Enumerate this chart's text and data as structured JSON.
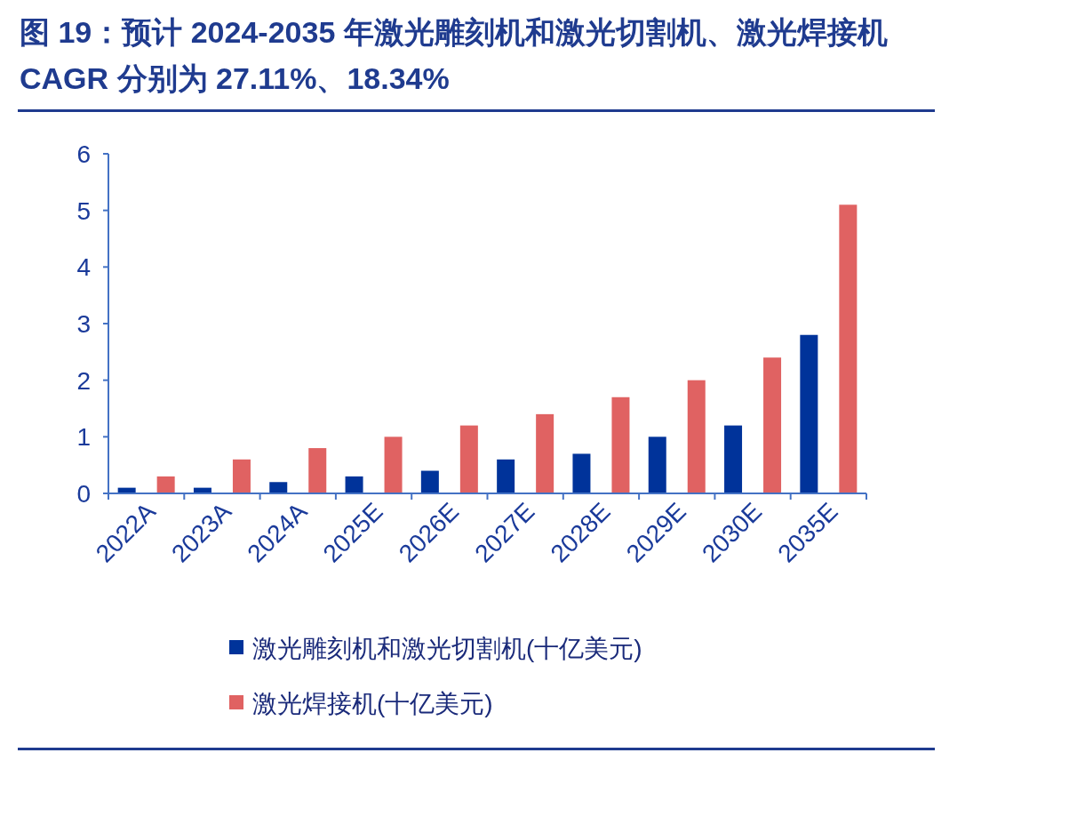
{
  "chart_data": {
    "type": "bar",
    "title": "图 19：预计 2024-2035 年激光雕刻机和激光切割机、激光焊接机 CAGR 分别为 27.11%、18.34%",
    "categories": [
      "2022A",
      "2023A",
      "2024A",
      "2025E",
      "2026E",
      "2027E",
      "2028E",
      "2029E",
      "2030E",
      "2035E"
    ],
    "series": [
      {
        "name": "激光雕刻机和激光切割机(十亿美元)",
        "color": "#00339a",
        "values": [
          0.1,
          0.1,
          0.2,
          0.3,
          0.4,
          0.6,
          0.7,
          1.0,
          1.2,
          2.8
        ]
      },
      {
        "name": "激光焊接机(十亿美元)",
        "color": "#e06262",
        "values": [
          0.3,
          0.6,
          0.8,
          1.0,
          1.2,
          1.4,
          1.7,
          2.0,
          2.4,
          5.1
        ]
      }
    ],
    "ylim": [
      0,
      6
    ],
    "yticks": [
      0,
      1,
      2,
      3,
      4,
      5,
      6
    ],
    "grid": false,
    "legend": "bottom"
  }
}
